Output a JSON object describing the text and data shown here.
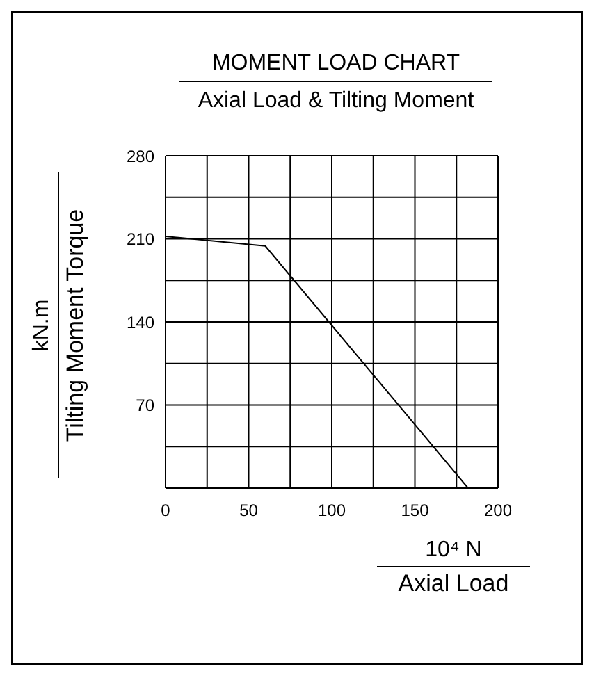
{
  "chart_data": {
    "type": "line",
    "title": "MOMENT LOAD CHART",
    "subtitle": "Axial Load & Tilting Moment",
    "xlabel": "10⁴ N\nAxial Load",
    "ylabel": "kN.m\nTilting Moment Torque",
    "x": [
      0,
      60,
      182
    ],
    "series": [
      {
        "color": "#000000",
        "values": [
          212,
          204,
          0
        ]
      }
    ],
    "xlim": [
      0,
      200
    ],
    "ylim": [
      0,
      280
    ],
    "xticks": [
      0,
      {
        "value": 25,
        "label": null
      },
      50,
      {
        "value": 75,
        "label": null
      },
      100,
      {
        "value": 125,
        "label": null
      },
      150,
      {
        "value": 175,
        "label": null
      },
      200
    ],
    "yticks": [
      {
        "value": 0,
        "label": null
      },
      {
        "value": 35,
        "label": null
      },
      70,
      {
        "value": 105,
        "label": null
      },
      140,
      {
        "value": 175,
        "label": null
      },
      210,
      {
        "value": 245,
        "label": null
      },
      280
    ],
    "grid": true,
    "marker": "none",
    "line_style": "solid"
  }
}
